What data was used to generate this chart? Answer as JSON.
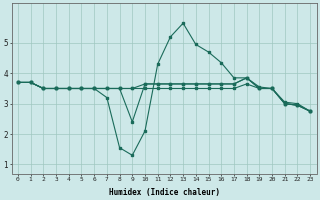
{
  "xlabel": "Humidex (Indice chaleur)",
  "background_color": "#cde8e8",
  "grid_color": "#a0c8c0",
  "line_color": "#1a6b5a",
  "xlim": [
    -0.5,
    23.5
  ],
  "ylim": [
    0.7,
    6.3
  ],
  "xticks": [
    0,
    1,
    2,
    3,
    4,
    5,
    6,
    7,
    8,
    9,
    10,
    11,
    12,
    13,
    14,
    15,
    16,
    17,
    18,
    19,
    20,
    21,
    22,
    23
  ],
  "yticks": [
    1,
    2,
    3,
    4,
    5
  ],
  "lines": [
    {
      "x": [
        0,
        1,
        2,
        3,
        4,
        5,
        6,
        7,
        8,
        9,
        10,
        11,
        12,
        13,
        14,
        15,
        16,
        17,
        18,
        19,
        20,
        21,
        22,
        23
      ],
      "y": [
        3.7,
        3.7,
        3.5,
        3.5,
        3.5,
        3.5,
        3.5,
        3.2,
        1.55,
        1.3,
        2.1,
        4.3,
        5.2,
        5.65,
        4.95,
        4.7,
        4.35,
        3.85,
        3.85,
        3.5,
        3.5,
        3.05,
        3.0,
        2.75
      ]
    },
    {
      "x": [
        0,
        1,
        2,
        3,
        4,
        5,
        6,
        7,
        8,
        9,
        10,
        11,
        12,
        13,
        14,
        15,
        16,
        17,
        18,
        19,
        20,
        21,
        22,
        23
      ],
      "y": [
        3.7,
        3.7,
        3.5,
        3.5,
        3.5,
        3.5,
        3.5,
        3.5,
        3.5,
        2.4,
        3.65,
        3.65,
        3.65,
        3.65,
        3.65,
        3.65,
        3.65,
        3.65,
        3.85,
        3.5,
        3.5,
        3.0,
        2.95,
        2.75
      ]
    },
    {
      "x": [
        0,
        1,
        2,
        3,
        4,
        5,
        6,
        7,
        8,
        9,
        10,
        11,
        12,
        13,
        14,
        15,
        16,
        17,
        18,
        19,
        20,
        21,
        22,
        23
      ],
      "y": [
        3.7,
        3.7,
        3.5,
        3.5,
        3.5,
        3.5,
        3.5,
        3.5,
        3.5,
        3.5,
        3.5,
        3.5,
        3.5,
        3.5,
        3.5,
        3.5,
        3.5,
        3.5,
        3.65,
        3.5,
        3.5,
        3.0,
        2.95,
        2.75
      ]
    },
    {
      "x": [
        0,
        1,
        2,
        3,
        4,
        5,
        6,
        7,
        8,
        9,
        10,
        11,
        12,
        13,
        14,
        15,
        16,
        17,
        18,
        19,
        20,
        21,
        22,
        23
      ],
      "y": [
        3.7,
        3.7,
        3.5,
        3.5,
        3.5,
        3.5,
        3.5,
        3.5,
        3.5,
        3.5,
        3.65,
        3.65,
        3.65,
        3.65,
        3.65,
        3.65,
        3.65,
        3.65,
        3.85,
        3.55,
        3.5,
        3.0,
        2.95,
        2.75
      ]
    }
  ]
}
